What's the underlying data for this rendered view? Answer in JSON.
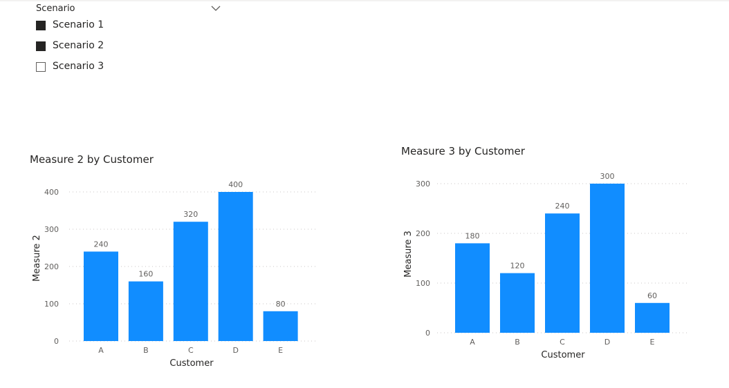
{
  "slicer": {
    "title": "Scenario",
    "items": [
      {
        "label": "Scenario 1",
        "checked": true
      },
      {
        "label": "Scenario 2",
        "checked": true
      },
      {
        "label": "Scenario 3",
        "checked": false
      }
    ]
  },
  "colors": {
    "bar": "#118DFF",
    "text": "#252423",
    "axis_text": "#605E5C",
    "gridline": "#C8C6C4"
  },
  "chart_data": [
    {
      "type": "bar",
      "title": "Measure 2 by Customer",
      "xlabel": "Customer",
      "ylabel": "Measure 2",
      "categories": [
        "A",
        "B",
        "C",
        "D",
        "E"
      ],
      "values": [
        240,
        160,
        320,
        400,
        80
      ],
      "yticks": [
        0,
        100,
        200,
        300,
        400
      ],
      "ylim": [
        0,
        400
      ],
      "grid": true,
      "data_labels": true
    },
    {
      "type": "bar",
      "title": "Measure 3 by Customer",
      "xlabel": "Customer",
      "ylabel": "Measure 3",
      "categories": [
        "A",
        "B",
        "C",
        "D",
        "E"
      ],
      "values": [
        180,
        120,
        240,
        300,
        60
      ],
      "yticks": [
        0,
        100,
        200,
        300
      ],
      "ylim": [
        0,
        300
      ],
      "grid": true,
      "data_labels": true
    }
  ]
}
